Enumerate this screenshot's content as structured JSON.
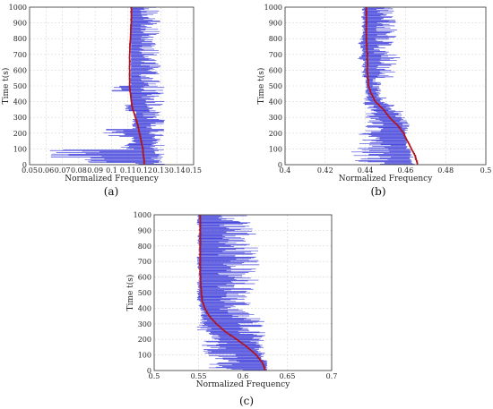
{
  "colors": {
    "measurement": "#2b2bd6",
    "fit": "#b5121b",
    "marker": "#7a2a2a"
  },
  "chart_data": [
    {
      "type": "line",
      "panel": "(a)",
      "xlabel": "Normalized Frequency",
      "ylabel": "Time t(s)",
      "xlim": [
        0.05,
        0.15
      ],
      "ylim": [
        0,
        1000
      ],
      "xticks": [
        0.05,
        0.06,
        0.07,
        0.08,
        0.09,
        0.1,
        0.11,
        0.12,
        0.13,
        0.14,
        0.15
      ],
      "xtick_labels": [
        "0.05",
        "0.06",
        "0.07",
        "0.08",
        "0.09",
        "0.1",
        "0.11",
        "0.12",
        "0.13",
        "0.14",
        "0.15"
      ],
      "yticks": [
        0,
        100,
        200,
        300,
        400,
        500,
        600,
        700,
        800,
        900,
        1000
      ],
      "grid": true,
      "series": [
        {
          "kind": "fit-curve",
          "points": [
            [
              0.12,
              0
            ],
            [
              0.1195,
              50
            ],
            [
              0.119,
              100
            ],
            [
              0.118,
              150
            ],
            [
              0.117,
              200
            ],
            [
              0.116,
              250
            ],
            [
              0.1145,
              300
            ],
            [
              0.113,
              350
            ],
            [
              0.112,
              400
            ],
            [
              0.1115,
              450
            ],
            [
              0.111,
              500
            ],
            [
              0.111,
              600
            ],
            [
              0.111,
              700
            ],
            [
              0.1115,
              800
            ],
            [
              0.112,
              900
            ],
            [
              0.112,
              1000
            ]
          ]
        },
        {
          "kind": "measurement-spikes",
          "range": [
            [
              0.11,
              0.133,
              0
            ],
            [
              0.079,
              0.133,
              20
            ],
            [
              0.06,
              0.133,
              70
            ],
            [
              0.105,
              0.133,
              120
            ],
            [
              0.112,
              0.133,
              150
            ],
            [
              0.095,
              0.133,
              200
            ],
            [
              0.112,
              0.133,
              250
            ],
            [
              0.115,
              0.13,
              330
            ],
            [
              0.108,
              0.13,
              350
            ],
            [
              0.112,
              0.133,
              410
            ],
            [
              0.112,
              0.133,
              450
            ],
            [
              0.098,
              0.133,
              480
            ],
            [
              0.112,
              0.13,
              520
            ],
            [
              0.112,
              0.13,
              600
            ]
          ]
        }
      ]
    },
    {
      "type": "line",
      "panel": "(b)",
      "xlabel": "Normalized Frequency",
      "ylabel": "Time t(s)",
      "xlim": [
        0.4,
        0.5
      ],
      "ylim": [
        0,
        1000
      ],
      "xticks": [
        0.4,
        0.42,
        0.44,
        0.46,
        0.48,
        0.5
      ],
      "xtick_labels": [
        "0.4",
        "0.42",
        "0.44",
        "0.46",
        "0.48",
        "0.5"
      ],
      "yticks": [
        0,
        100,
        200,
        300,
        400,
        500,
        600,
        700,
        800,
        900,
        1000
      ],
      "grid": true,
      "series": [
        {
          "kind": "fit-curve",
          "points": [
            [
              0.466,
              0
            ],
            [
              0.465,
              50
            ],
            [
              0.463,
              100
            ],
            [
              0.461,
              150
            ],
            [
              0.459,
              200
            ],
            [
              0.456,
              250
            ],
            [
              0.452,
              300
            ],
            [
              0.449,
              350
            ],
            [
              0.445,
              400
            ],
            [
              0.443,
              450
            ],
            [
              0.4415,
              500
            ],
            [
              0.441,
              600
            ],
            [
              0.441,
              700
            ],
            [
              0.4405,
              800
            ],
            [
              0.4405,
              900
            ],
            [
              0.4405,
              1000
            ]
          ]
        },
        {
          "kind": "measurement-spikes",
          "range": [
            [
              0.432,
              0.462,
              50
            ],
            [
              0.436,
              0.46,
              150
            ],
            [
              0.438,
              0.462,
              250
            ],
            [
              0.44,
              0.46,
              320
            ],
            [
              0.44,
              0.455,
              360
            ],
            [
              0.438,
              0.452,
              400
            ],
            [
              0.44,
              0.448,
              450
            ],
            [
              0.438,
              0.456,
              650
            ],
            [
              0.436,
              0.458,
              680
            ],
            [
              0.438,
              0.452,
              720
            ],
            [
              0.436,
              0.455,
              760
            ],
            [
              0.438,
              0.456,
              850
            ],
            [
              0.438,
              0.456,
              900
            ],
            [
              0.438,
              0.455,
              960
            ]
          ]
        }
      ]
    },
    {
      "type": "line",
      "panel": "(c)",
      "xlabel": "Normalized Frequency",
      "ylabel": "Time t(s)",
      "xlim": [
        0.5,
        0.7
      ],
      "ylim": [
        0,
        1000
      ],
      "xticks": [
        0.5,
        0.55,
        0.6,
        0.65,
        0.7
      ],
      "xtick_labels": [
        "0.5",
        "0.55",
        "0.6",
        "0.65",
        "0.7"
      ],
      "yticks": [
        0,
        100,
        200,
        300,
        400,
        500,
        600,
        700,
        800,
        900,
        1000
      ],
      "grid": true,
      "series": [
        {
          "kind": "fit-curve",
          "points": [
            [
              0.625,
              0
            ],
            [
              0.622,
              50
            ],
            [
              0.615,
              100
            ],
            [
              0.605,
              150
            ],
            [
              0.593,
              200
            ],
            [
              0.58,
              250
            ],
            [
              0.57,
              300
            ],
            [
              0.562,
              350
            ],
            [
              0.557,
              400
            ],
            [
              0.554,
              450
            ],
            [
              0.553,
              500
            ],
            [
              0.552,
              600
            ],
            [
              0.552,
              700
            ],
            [
              0.552,
              800
            ],
            [
              0.552,
              900
            ],
            [
              0.552,
              1000
            ]
          ]
        },
        {
          "kind": "measurement-spikes",
          "range": [
            [
              0.56,
              0.628,
              30
            ],
            [
              0.555,
              0.625,
              100
            ],
            [
              0.553,
              0.628,
              200
            ],
            [
              0.548,
              0.625,
              300
            ],
            [
              0.552,
              0.62,
              360
            ],
            [
              0.55,
              0.61,
              420
            ],
            [
              0.548,
              0.61,
              480
            ],
            [
              0.548,
              0.615,
              550
            ],
            [
              0.55,
              0.618,
              600
            ],
            [
              0.548,
              0.62,
              700
            ],
            [
              0.55,
              0.618,
              760
            ],
            [
              0.548,
              0.618,
              850
            ],
            [
              0.55,
              0.618,
              900
            ],
            [
              0.548,
              0.61,
              960
            ]
          ]
        }
      ]
    }
  ]
}
